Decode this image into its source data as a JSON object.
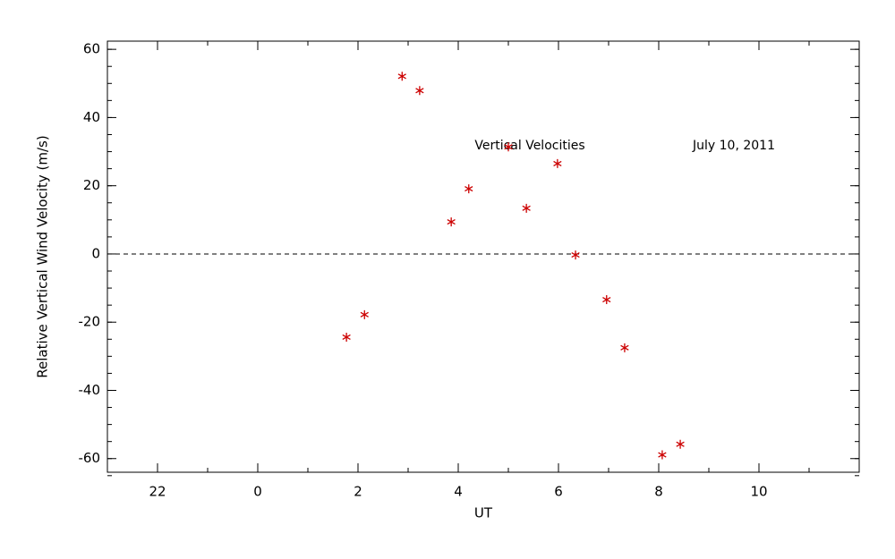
{
  "chart_data": {
    "type": "scatter",
    "xlabel": "UT",
    "ylabel": "Relative Vertical Wind Velocity (m/s)",
    "annotations": [
      "Vertical Velocities",
      "July 10, 2011"
    ],
    "series": [
      {
        "color": "#cc0000",
        "marker": "asterisk",
        "x": [
          1.77,
          2.13,
          2.88,
          3.23,
          3.86,
          4.21,
          5.0,
          5.36,
          5.98,
          6.34,
          6.96,
          7.32,
          8.07,
          8.43
        ],
        "values": [
          -24.4,
          -17.8,
          52.1,
          47.9,
          9.4,
          19.1,
          31.4,
          13.4,
          26.5,
          -0.3,
          -13.4,
          -27.5,
          -58.9,
          -55.8
        ]
      }
    ],
    "xlim": [
      -3,
      12
    ],
    "xticks": [
      {
        "value": -2,
        "label": "22"
      },
      0,
      2,
      4,
      6,
      8,
      10
    ],
    "ylim": [
      -64,
      62.4
    ],
    "yticks": [
      -60,
      -40,
      -20,
      0,
      20,
      40,
      60
    ],
    "x_minor": 2,
    "y_minor": 4,
    "hline": 0,
    "grid": false
  }
}
